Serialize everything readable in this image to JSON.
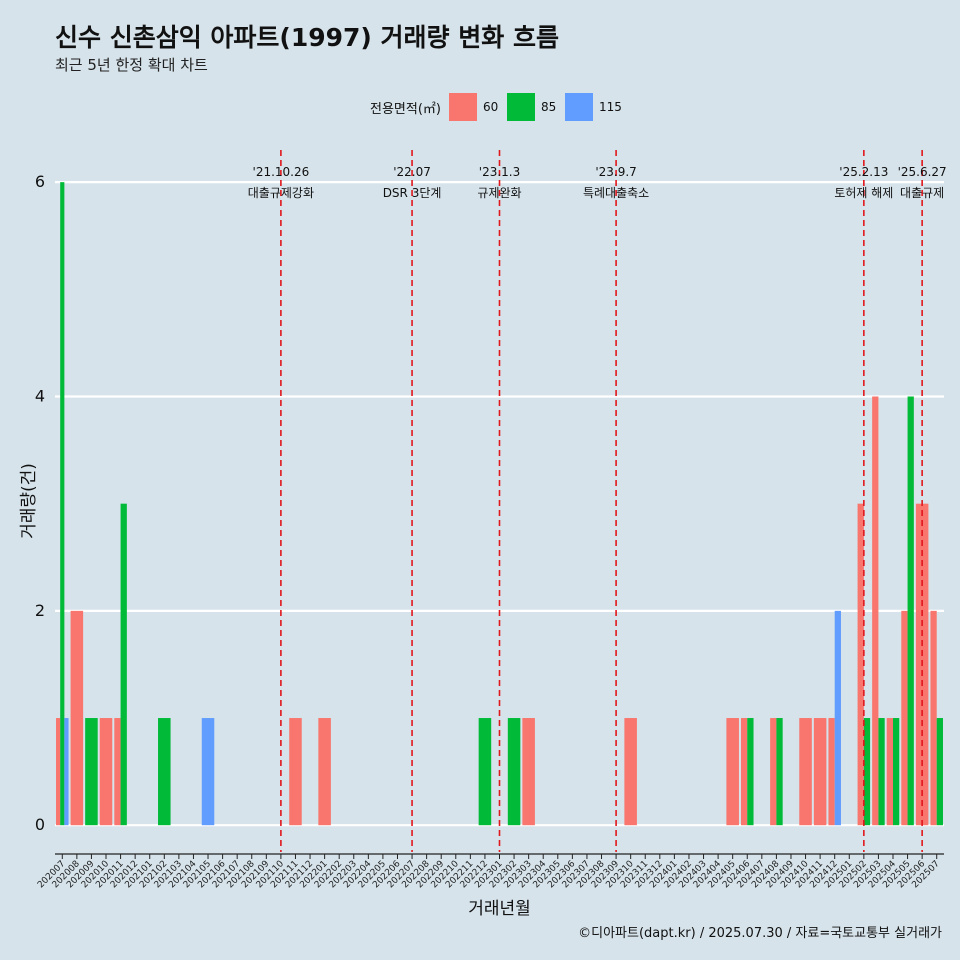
{
  "title": "신수 신촌삼익 아파트(1997) 거래량 변화 흐름",
  "subtitle": "최근 5년 한정 확대 차트",
  "legend_title": "전용면적(㎡)",
  "caption": "©디아파트(dapt.kr) / 2025.07.30 / 자료=국토교통부 실거래가",
  "colors": {
    "background": "#d6e3ea",
    "grid": "#ffffff",
    "vline": "#e0171c"
  },
  "chart_data": {
    "type": "bar",
    "xlabel": "거래년월",
    "ylabel": "거래량(건)",
    "ylim": [
      -0.25,
      6.3
    ],
    "yticks": [
      0,
      2,
      4,
      6
    ],
    "categories": [
      "202007",
      "202008",
      "202009",
      "202010",
      "202011",
      "202012",
      "202101",
      "202102",
      "202103",
      "202104",
      "202105",
      "202106",
      "202107",
      "202108",
      "202109",
      "202110",
      "202111",
      "202112",
      "202201",
      "202202",
      "202203",
      "202204",
      "202205",
      "202206",
      "202207",
      "202208",
      "202209",
      "202210",
      "202211",
      "202212",
      "202301",
      "202302",
      "202303",
      "202304",
      "202305",
      "202306",
      "202307",
      "202308",
      "202309",
      "202310",
      "202311",
      "202312",
      "202401",
      "202402",
      "202403",
      "202404",
      "202405",
      "202406",
      "202407",
      "202408",
      "202409",
      "202410",
      "202411",
      "202412",
      "202501",
      "202502",
      "202503",
      "202504",
      "202505",
      "202506",
      "202507"
    ],
    "series": [
      {
        "name": "60",
        "color": "#f8766d",
        "values": [
          1,
          2,
          0,
          1,
          1,
          0,
          0,
          0,
          0,
          0,
          0,
          0,
          0,
          0,
          0,
          0,
          1,
          0,
          1,
          0,
          0,
          0,
          0,
          0,
          0,
          0,
          0,
          0,
          0,
          0,
          0,
          0,
          1,
          0,
          0,
          0,
          0,
          0,
          0,
          1,
          0,
          0,
          0,
          0,
          0,
          0,
          1,
          1,
          0,
          1,
          0,
          1,
          1,
          1,
          0,
          3,
          4,
          1,
          2,
          3,
          2
        ]
      },
      {
        "name": "85",
        "color": "#00ba38",
        "values": [
          6,
          0,
          1,
          0,
          3,
          0,
          0,
          1,
          0,
          0,
          0,
          0,
          0,
          0,
          0,
          0,
          0,
          0,
          0,
          0,
          0,
          0,
          0,
          0,
          0,
          0,
          0,
          0,
          0,
          1,
          0,
          1,
          0,
          0,
          0,
          0,
          0,
          0,
          0,
          0,
          0,
          0,
          0,
          0,
          0,
          0,
          0,
          1,
          0,
          1,
          0,
          0,
          0,
          0,
          0,
          1,
          1,
          1,
          4,
          0,
          1
        ]
      },
      {
        "name": "115",
        "color": "#619cff",
        "values": [
          1,
          0,
          0,
          0,
          0,
          0,
          0,
          0,
          0,
          0,
          1,
          0,
          0,
          0,
          0,
          0,
          0,
          0,
          0,
          0,
          0,
          0,
          0,
          0,
          0,
          0,
          0,
          0,
          0,
          0,
          0,
          0,
          0,
          0,
          0,
          0,
          0,
          0,
          0,
          0,
          0,
          0,
          0,
          0,
          0,
          0,
          0,
          0,
          0,
          0,
          0,
          0,
          0,
          2,
          0,
          0,
          0,
          0,
          0,
          0,
          0
        ]
      }
    ],
    "events": [
      {
        "x": "202110",
        "date": "'21.10.26",
        "label": "대출규제강화"
      },
      {
        "x": "202207",
        "date": "'22.07",
        "label": "DSR 3단계"
      },
      {
        "x": "202301",
        "date": "'23.1.3",
        "label": "규제완화"
      },
      {
        "x": "202309",
        "date": "'23.9.7",
        "label": "특례대출축소"
      },
      {
        "x": "202502",
        "date": "'25.2.13",
        "label": "토허제 해제"
      },
      {
        "x": "202506",
        "date": "'25.6.27",
        "label": "대출규제"
      }
    ]
  }
}
